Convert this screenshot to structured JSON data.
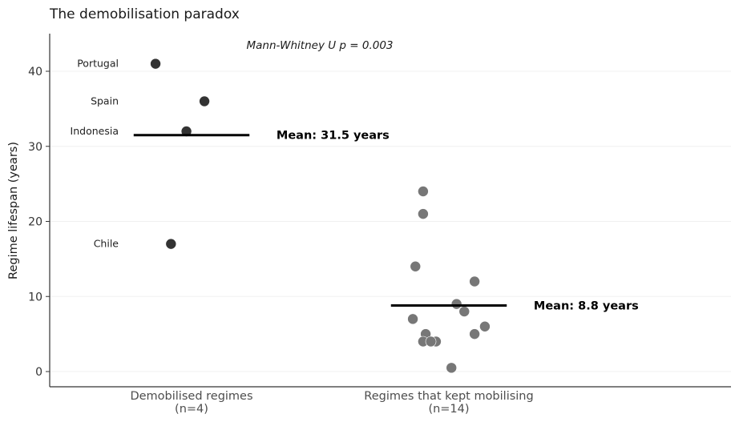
{
  "chart_data": {
    "type": "scatter",
    "title": "The demobilisation paradox",
    "annotation": "Mann-Whitney U  p = 0.003",
    "ylabel": "Regime lifespan (years)",
    "xlabel": "",
    "ylim": [
      -2,
      45
    ],
    "yticks": [
      0,
      10,
      20,
      30,
      40
    ],
    "grid": true,
    "categories": [
      {
        "label": "Demobilised regimes",
        "sublabel": "(n=4)"
      },
      {
        "label": "Regimes that kept mobilising",
        "sublabel": "(n=14)"
      }
    ],
    "series": [
      {
        "name": "Demobilised regimes",
        "color": "#333333",
        "points": [
          {
            "label": "Portugal",
            "y": 41,
            "jitter": -0.14
          },
          {
            "label": "Spain",
            "y": 36,
            "jitter": 0.05
          },
          {
            "label": "Indonesia",
            "y": 32,
            "jitter": -0.02
          },
          {
            "label": "Chile",
            "y": 17,
            "jitter": -0.08
          }
        ],
        "mean": 31.5,
        "mean_label": "Mean: 31.5 years"
      },
      {
        "name": "Regimes that kept mobilising",
        "color": "#777777",
        "points": [
          {
            "y": 24,
            "jitter": -0.1
          },
          {
            "y": 21,
            "jitter": -0.1
          },
          {
            "y": 14,
            "jitter": -0.13
          },
          {
            "y": 12,
            "jitter": 0.1
          },
          {
            "y": 9,
            "jitter": 0.03
          },
          {
            "y": 8,
            "jitter": 0.06
          },
          {
            "y": 7,
            "jitter": -0.14
          },
          {
            "y": 6,
            "jitter": 0.14
          },
          {
            "y": 5,
            "jitter": -0.09
          },
          {
            "y": 5,
            "jitter": 0.1
          },
          {
            "y": 4,
            "jitter": -0.1
          },
          {
            "y": 4,
            "jitter": -0.05
          },
          {
            "y": 4,
            "jitter": -0.07
          },
          {
            "y": 0.5,
            "jitter": 0.01
          }
        ],
        "mean": 8.8,
        "mean_label": "Mean: 8.8 years"
      }
    ]
  }
}
